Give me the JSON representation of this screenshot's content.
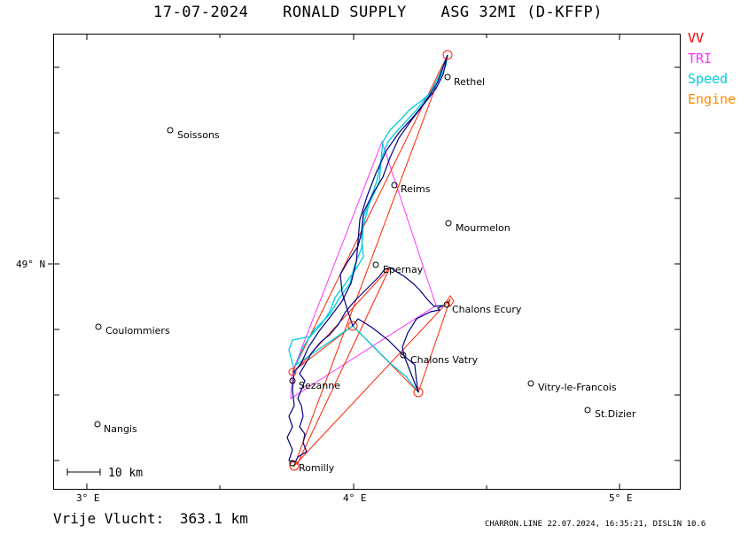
{
  "header": {
    "date": "17-07-2024",
    "pilot": "RONALD SUPPLY",
    "glider": "ASG 32MI (D-KFFP)"
  },
  "legend": [
    {
      "label": "VV",
      "color": "#ff0000"
    },
    {
      "label": "TRI",
      "color": "#ff33ff"
    },
    {
      "label": "Speed",
      "color": "#00ccdd"
    },
    {
      "label": "Engine",
      "color": "#ff8800"
    }
  ],
  "axes": {
    "x_ticks": [
      "3° E",
      "4° E",
      "5° E"
    ],
    "y_ticks": [
      "49° N"
    ]
  },
  "scale_bar": "10 km",
  "towns": [
    {
      "name": "Rethel"
    },
    {
      "name": "Soissons"
    },
    {
      "name": "Reims"
    },
    {
      "name": "Mourmelon"
    },
    {
      "name": "Epernay"
    },
    {
      "name": "Chalons Ecury"
    },
    {
      "name": "Coulommiers"
    },
    {
      "name": "Chalons Vatry"
    },
    {
      "name": "Sezanne"
    },
    {
      "name": "Vitry-le-Francois"
    },
    {
      "name": "St.Dizier"
    },
    {
      "name": "Nangis"
    },
    {
      "name": "Romilly"
    }
  ],
  "footer": {
    "distance_label": "Vrije Vlucht:",
    "distance_value": "363.1 km",
    "credit": "CHARRON.LINE 22.07.2024, 16:35:21, DISLIN 10.6"
  },
  "colors": {
    "track": "#000080",
    "speed": "#00ccdd",
    "vv": "#ff0000",
    "tri": "#ff33ff",
    "frame": "#000000"
  }
}
